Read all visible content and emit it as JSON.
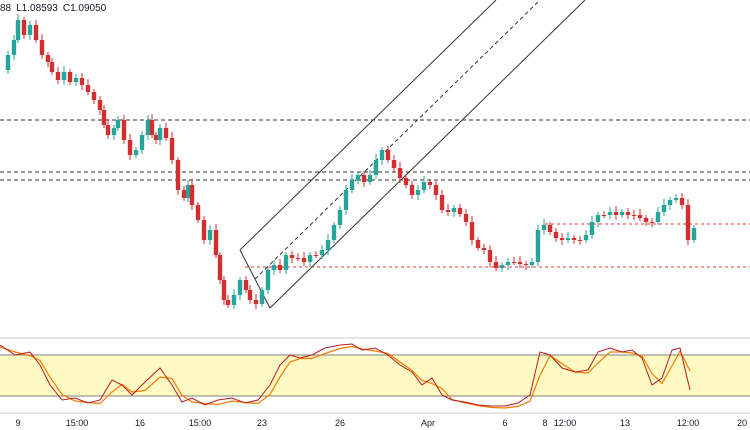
{
  "ohlc_header": {
    "open_fragment": "88",
    "low": "L1.08593",
    "close": "C1.09050"
  },
  "colors": {
    "up": "#26a69a",
    "down": "#d32f2f",
    "channel": "#333333",
    "hline_black": "#333333",
    "hline_red": "#e53935",
    "stoch_k": "#b71c1c",
    "stoch_d": "#f57c00",
    "stoch_band": "#fff9c4",
    "stoch_band_border": "#555555",
    "axis_text": "#131722"
  },
  "x_axis": {
    "labels": [
      "9",
      "15:00",
      "16",
      "15:00",
      "23",
      "26",
      "Apr",
      "6",
      "8",
      "12:00",
      "13",
      "12:00",
      "20"
    ]
  }
}
